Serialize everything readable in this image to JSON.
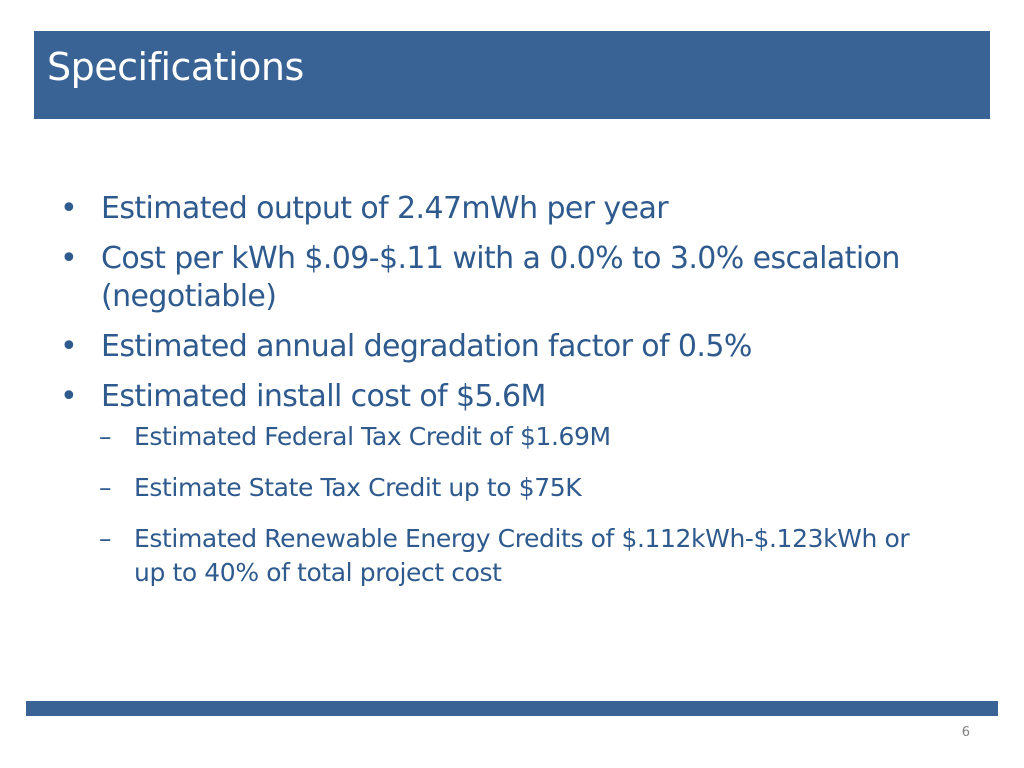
{
  "slide": {
    "title": "Specifications",
    "bullets": [
      {
        "marker": "•",
        "text": "Estimated output of 2.47mWh per year"
      },
      {
        "marker": "•",
        "text": "Cost per kWh $.09-$.11 with a 0.0% to 3.0% escalation (negotiable)"
      },
      {
        "marker": "•",
        "text": "Estimated annual degradation factor of 0.5%"
      },
      {
        "marker": "•",
        "text": "Estimated install cost of $5.6M"
      }
    ],
    "sub_bullets": [
      {
        "marker": "–",
        "text": "Estimated Federal Tax Credit of $1.69M"
      },
      {
        "marker": "–",
        "text": "Estimate State Tax Credit up to $75K"
      },
      {
        "marker": "–",
        "text": "Estimated Renewable Energy Credits of $.112kWh-$.123kWh or up to 40% of total project cost"
      }
    ],
    "page_number": "6"
  },
  "colors": {
    "title_bar": "#3a6395",
    "title_text": "#ffffff",
    "body_text": "#2e5a8e",
    "page_number": "#808080"
  }
}
